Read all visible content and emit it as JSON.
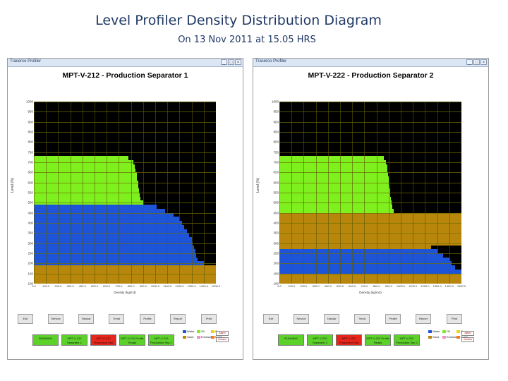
{
  "slide": {
    "title": "Level Profiler Density Distribution Diagram",
    "subtitle": "On 13 Nov 2011 at 15.05 HRS"
  },
  "windows": [
    {
      "window_title": "Tracerco Profiler",
      "chart_title": "MPT-V-212 - Production Separator 1",
      "y_label": "Level (%)",
      "x_label": "Density (kg/m3)",
      "y_ticks": [
        "1000",
        "950",
        "900",
        "850",
        "800",
        "750",
        "700",
        "650",
        "600",
        "550",
        "500",
        "450",
        "400",
        "350",
        "300",
        "250",
        "200",
        "150",
        "100"
      ],
      "x_ticks": [
        "0.0",
        "100.0",
        "200.0",
        "300.0",
        "400.0",
        "500.0",
        "600.0",
        "700.0",
        "800.0",
        "900.0",
        "1000.0",
        "1100.0",
        "1200.0",
        "1300.0",
        "1400.0",
        "1500.0"
      ],
      "buttons": [
        "Exit",
        "Service",
        "Tabular",
        "Trend",
        "Profile",
        "Report",
        "Print"
      ],
      "status": [
        {
          "label": "RUNNING",
          "color": "#5cd12a"
        },
        {
          "label": "MPT-V-212 Separator 1",
          "color": "#5cd12a"
        },
        {
          "label": "MPT-V-212 Production Sep",
          "color": "#e8251b"
        },
        {
          "label": "MPT-V-212 Profile Ready",
          "color": "#5cd12a"
        },
        {
          "label": "MPT-V-212 Production Sep 1",
          "color": "#5cd12a"
        }
      ],
      "legend": [
        {
          "label": "Water",
          "color": "#1d54d8"
        },
        {
          "label": "Oil",
          "color": "#7ef01e"
        },
        {
          "label": "Gas",
          "color": "#f0d21e"
        },
        {
          "label": "Sand",
          "color": "#b8860b"
        },
        {
          "label": "Emulsion",
          "color": "#f08cd2"
        },
        {
          "label": "Foam",
          "color": "#f07a1e"
        }
      ],
      "mini_buttons": [
        "Alarm",
        "Comms"
      ],
      "chart_data": {
        "type": "bar",
        "orientation": "horizontal",
        "title": "MPT-V-212 - Production Separator 1",
        "xlabel": "Density (kg/m3)",
        "ylabel": "Level (%)",
        "xlim": [
          0,
          1500
        ],
        "ylim": [
          100,
          1000
        ],
        "layers": [
          {
            "phase": "gas",
            "from": 735,
            "to": 1000,
            "color": "#000000"
          },
          {
            "phase": "foam",
            "from": 725,
            "to": 735,
            "color": "#e6d21e"
          },
          {
            "phase": "oil",
            "from": 495,
            "to": 725,
            "color": "#7ef01e"
          },
          {
            "phase": "water",
            "from": 195,
            "to": 495,
            "color": "#1d54d8"
          },
          {
            "phase": "sand",
            "from": 100,
            "to": 195,
            "color": "#b8860b"
          }
        ],
        "profile": [
          {
            "level": 990,
            "density": 30
          },
          {
            "level": 960,
            "density": 25
          },
          {
            "level": 930,
            "density": 20
          },
          {
            "level": 900,
            "density": 18
          },
          {
            "level": 870,
            "density": 15
          },
          {
            "level": 840,
            "density": 12
          },
          {
            "level": 810,
            "density": 10
          },
          {
            "level": 780,
            "density": 12
          },
          {
            "level": 750,
            "density": 15
          },
          {
            "level": 735,
            "density": 40
          },
          {
            "level": 720,
            "density": 780
          },
          {
            "level": 700,
            "density": 820
          },
          {
            "level": 680,
            "density": 830
          },
          {
            "level": 660,
            "density": 840
          },
          {
            "level": 640,
            "density": 850
          },
          {
            "level": 620,
            "density": 850
          },
          {
            "level": 600,
            "density": 860
          },
          {
            "level": 580,
            "density": 860
          },
          {
            "level": 560,
            "density": 865
          },
          {
            "level": 540,
            "density": 870
          },
          {
            "level": 520,
            "density": 875
          },
          {
            "level": 500,
            "density": 900
          },
          {
            "level": 480,
            "density": 1010
          },
          {
            "level": 460,
            "density": 1080
          },
          {
            "level": 440,
            "density": 1150
          },
          {
            "level": 420,
            "density": 1200
          },
          {
            "level": 400,
            "density": 1220
          },
          {
            "level": 380,
            "density": 1240
          },
          {
            "level": 360,
            "density": 1260
          },
          {
            "level": 340,
            "density": 1280
          },
          {
            "level": 320,
            "density": 1300
          },
          {
            "level": 300,
            "density": 1310
          },
          {
            "level": 280,
            "density": 1320
          },
          {
            "level": 260,
            "density": 1330
          },
          {
            "level": 240,
            "density": 1340
          },
          {
            "level": 220,
            "density": 1350
          },
          {
            "level": 200,
            "density": 1400
          },
          {
            "level": 180,
            "density": 1500
          },
          {
            "level": 160,
            "density": 1500
          },
          {
            "level": 140,
            "density": 1500
          },
          {
            "level": 120,
            "density": 1500
          },
          {
            "level": 105,
            "density": 1500
          }
        ]
      }
    },
    {
      "window_title": "Tracerco Profiler",
      "chart_title": "MPT-V-222 - Production Separator 2",
      "y_label": "Level (%)",
      "x_label": "Density (kg/m3)",
      "y_ticks": [
        "1000",
        "950",
        "900",
        "850",
        "800",
        "750",
        "700",
        "650",
        "600",
        "550",
        "500",
        "450",
        "400",
        "350",
        "300",
        "250",
        "200",
        "150",
        "100"
      ],
      "x_ticks": [
        "0.0",
        "100.0",
        "200.0",
        "300.0",
        "400.0",
        "500.0",
        "600.0",
        "700.0",
        "800.0",
        "900.0",
        "1000.0",
        "1100.0",
        "1200.0",
        "1300.0",
        "1400.0",
        "1500.0"
      ],
      "buttons": [
        "Exit",
        "Service",
        "Tabular",
        "Trend",
        "Profile",
        "Report",
        "Print"
      ],
      "status": [
        {
          "label": "RUNNING",
          "color": "#5cd12a"
        },
        {
          "label": "MPT-V-222 Separator 2",
          "color": "#5cd12a"
        },
        {
          "label": "MPT-V-222 Production Sep",
          "color": "#e8251b"
        },
        {
          "label": "MPT-V-222 Profile Ready",
          "color": "#5cd12a"
        },
        {
          "label": "MPT-V-222 Production Sep 2",
          "color": "#5cd12a"
        }
      ],
      "legend": [
        {
          "label": "Water",
          "color": "#1d54d8"
        },
        {
          "label": "Oil",
          "color": "#7ef01e"
        },
        {
          "label": "Gas",
          "color": "#f0d21e"
        },
        {
          "label": "Sand",
          "color": "#b8860b"
        },
        {
          "label": "Emulsion",
          "color": "#f08cd2"
        },
        {
          "label": "Foam",
          "color": "#f07a1e"
        }
      ],
      "mini_buttons": [
        "Alarm",
        "Comms"
      ],
      "chart_data": {
        "type": "bar",
        "orientation": "horizontal",
        "title": "MPT-V-222 - Production Separator 2",
        "xlabel": "Density (kg/m3)",
        "ylabel": "Level (%)",
        "xlim": [
          0,
          1500
        ],
        "ylim": [
          100,
          1000
        ],
        "layers": [
          {
            "phase": "gas",
            "from": 735,
            "to": 1000,
            "color": "#000000"
          },
          {
            "phase": "foam",
            "from": 728,
            "to": 735,
            "color": "#e0321e"
          },
          {
            "phase": "oil",
            "from": 450,
            "to": 728,
            "color": "#7ef01e"
          },
          {
            "phase": "sand",
            "from": 280,
            "to": 450,
            "color": "#b8860b"
          },
          {
            "phase": "water",
            "from": 160,
            "to": 280,
            "color": "#1d54d8"
          },
          {
            "phase": "sand",
            "from": 100,
            "to": 160,
            "color": "#b8860b"
          }
        ],
        "profile": [
          {
            "level": 990,
            "density": 10
          },
          {
            "level": 960,
            "density": 8
          },
          {
            "level": 930,
            "density": 8
          },
          {
            "level": 900,
            "density": 10
          },
          {
            "level": 870,
            "density": 8
          },
          {
            "level": 840,
            "density": 10
          },
          {
            "level": 810,
            "density": 8
          },
          {
            "level": 780,
            "density": 10
          },
          {
            "level": 750,
            "density": 12
          },
          {
            "level": 735,
            "density": 30
          },
          {
            "level": 720,
            "density": 860
          },
          {
            "level": 700,
            "density": 880
          },
          {
            "level": 680,
            "density": 890
          },
          {
            "level": 660,
            "density": 890
          },
          {
            "level": 640,
            "density": 895
          },
          {
            "level": 620,
            "density": 900
          },
          {
            "level": 600,
            "density": 900
          },
          {
            "level": 580,
            "density": 905
          },
          {
            "level": 560,
            "density": 910
          },
          {
            "level": 540,
            "density": 915
          },
          {
            "level": 520,
            "density": 920
          },
          {
            "level": 500,
            "density": 925
          },
          {
            "level": 480,
            "density": 930
          },
          {
            "level": 460,
            "density": 940
          },
          {
            "level": 440,
            "density": 1500
          },
          {
            "level": 420,
            "density": 1500
          },
          {
            "level": 400,
            "density": 1500
          },
          {
            "level": 380,
            "density": 1500
          },
          {
            "level": 360,
            "density": 1500
          },
          {
            "level": 340,
            "density": 1500
          },
          {
            "level": 320,
            "density": 1500
          },
          {
            "level": 300,
            "density": 1500
          },
          {
            "level": 280,
            "density": 1250
          },
          {
            "level": 260,
            "density": 1300
          },
          {
            "level": 240,
            "density": 1350
          },
          {
            "level": 220,
            "density": 1400
          },
          {
            "level": 200,
            "density": 1420
          },
          {
            "level": 180,
            "density": 1450
          },
          {
            "level": 160,
            "density": 1500
          },
          {
            "level": 140,
            "density": 1500
          },
          {
            "level": 120,
            "density": 1500
          },
          {
            "level": 105,
            "density": 1500
          }
        ]
      }
    }
  ]
}
